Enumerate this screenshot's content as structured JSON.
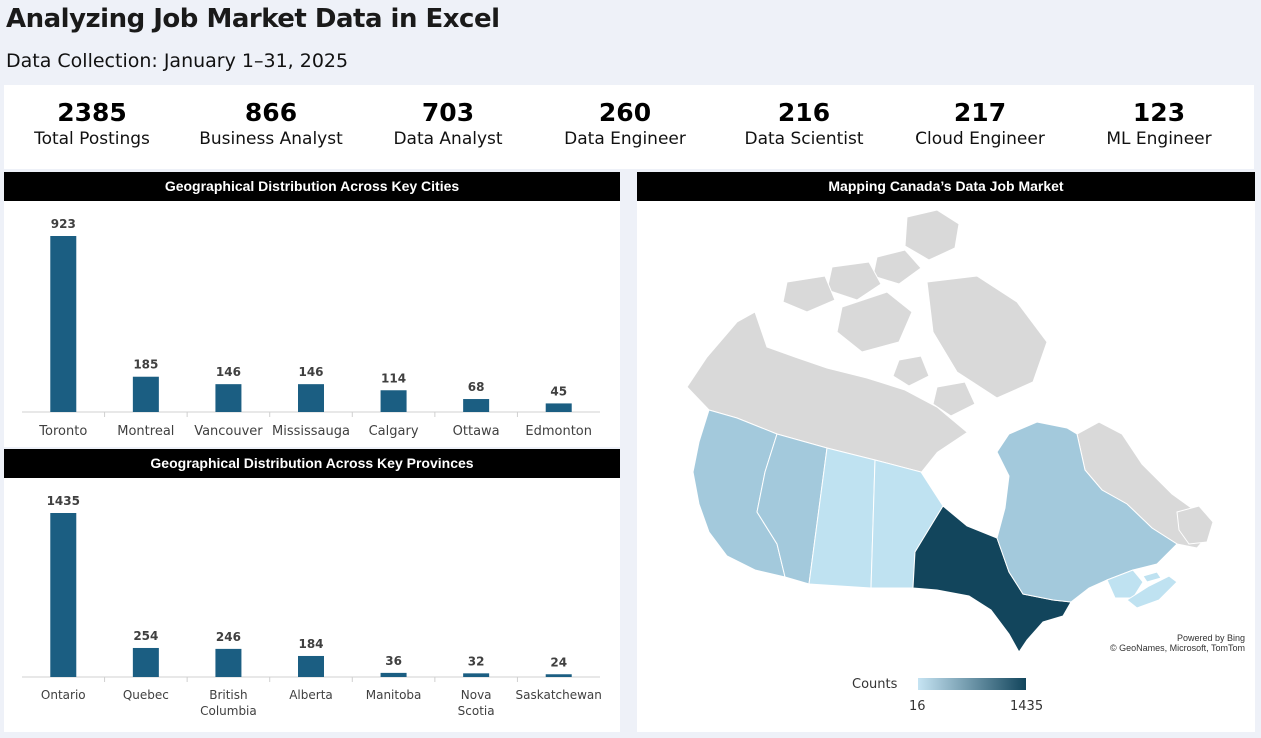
{
  "header": {
    "title": "Analyzing Job Market Data in Excel",
    "subtitle": "Data Collection: January 1–31, 2025"
  },
  "kpis": [
    {
      "value": "2385",
      "label": "Total Postings"
    },
    {
      "value": "866",
      "label": "Business Analyst"
    },
    {
      "value": "703",
      "label": "Data Analyst"
    },
    {
      "value": "260",
      "label": "Data Engineer"
    },
    {
      "value": "216",
      "label": "Data Scientist"
    },
    {
      "value": "217",
      "label": "Cloud Engineer"
    },
    {
      "value": "123",
      "label": "ML Engineer"
    }
  ],
  "colors": {
    "bar": "#1b5e82",
    "ontario": "#12455c",
    "quebec_bc": "#a3c9dc",
    "prairie": "#bfe2f1",
    "territories": "#d9d9d9",
    "legend_low": "#c6e4f3",
    "legend_high": "#12455c"
  },
  "charts": {
    "cities_title": "Geographical Distribution Across Key Cities",
    "provinces_title": "Geographical Distribution Across Key Provinces"
  },
  "chart_data": [
    {
      "type": "bar",
      "title": "Geographical Distribution Across Key Cities",
      "categories": [
        "Toronto",
        "Montreal",
        "Vancouver",
        "Mississauga",
        "Calgary",
        "Ottawa",
        "Edmonton"
      ],
      "values": [
        923,
        185,
        146,
        146,
        114,
        68,
        45
      ],
      "data_labels": true,
      "grid": false
    },
    {
      "type": "bar",
      "title": "Geographical Distribution Across Key Provinces",
      "categories": [
        "Ontario",
        "Quebec",
        "British Columbia",
        "Alberta",
        "Manitoba",
        "Nova Scotia",
        "Saskatchewan"
      ],
      "values": [
        1435,
        254,
        246,
        184,
        36,
        32,
        24
      ],
      "data_labels": true,
      "grid": false
    }
  ],
  "map": {
    "title": "Mapping Canada’s Data Job Market",
    "credit_line1": "Powered by Bing",
    "credit_line2": "© GeoNames, Microsoft, TomTom",
    "legend": {
      "label": "Counts",
      "min": "16",
      "max": "1435"
    }
  }
}
